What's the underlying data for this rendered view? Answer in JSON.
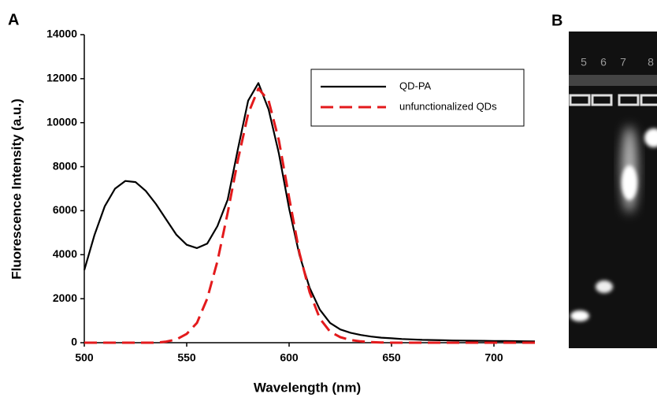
{
  "chart_data": {
    "type": "line",
    "panel_label": "A",
    "x_label": "Wavelength (nm)",
    "y_label": "Fluorescence Intensity (a.u.)",
    "x": [
      500,
      505,
      510,
      515,
      520,
      525,
      530,
      535,
      540,
      545,
      550,
      555,
      560,
      565,
      570,
      575,
      580,
      585,
      590,
      595,
      600,
      605,
      610,
      615,
      620,
      625,
      630,
      635,
      640,
      645,
      650,
      655,
      660,
      665,
      670,
      675,
      680,
      685,
      690,
      695,
      700,
      705,
      710,
      715,
      720
    ],
    "series": [
      {
        "name": "QD-PA",
        "color": "#000000",
        "line_style": "solid",
        "values": [
          3300,
          4900,
          6200,
          7000,
          7350,
          7300,
          6900,
          6300,
          5600,
          4900,
          4450,
          4300,
          4500,
          5300,
          6500,
          8800,
          11000,
          11800,
          10600,
          8600,
          6100,
          4000,
          2500,
          1500,
          900,
          600,
          450,
          350,
          280,
          230,
          200,
          170,
          150,
          130,
          120,
          110,
          100,
          95,
          90,
          85,
          80,
          75,
          70,
          65,
          60
        ]
      },
      {
        "name": "unfunctionalized QDs",
        "color": "#e31a1c",
        "line_style": "dashed",
        "values": [
          0,
          0,
          0,
          0,
          0,
          0,
          0,
          0,
          50,
          150,
          400,
          900,
          2000,
          3700,
          5900,
          8300,
          10400,
          11550,
          11000,
          9200,
          6600,
          4100,
          2300,
          1100,
          500,
          250,
          120,
          60,
          30,
          10,
          0,
          0,
          0,
          0,
          0,
          0,
          0,
          0,
          0,
          0,
          0,
          0,
          0,
          0,
          0
        ]
      }
    ],
    "xlim": [
      500,
      720
    ],
    "xticks": [
      500,
      550,
      600,
      650,
      700
    ],
    "ylim": [
      0,
      14000
    ],
    "yticks": [
      0,
      2000,
      4000,
      6000,
      8000,
      10000,
      12000,
      14000
    ],
    "grid": false,
    "legend": "upper right"
  },
  "gel": {
    "panel_label": "B",
    "lanes": [
      "5",
      "6",
      "7",
      "8"
    ]
  }
}
